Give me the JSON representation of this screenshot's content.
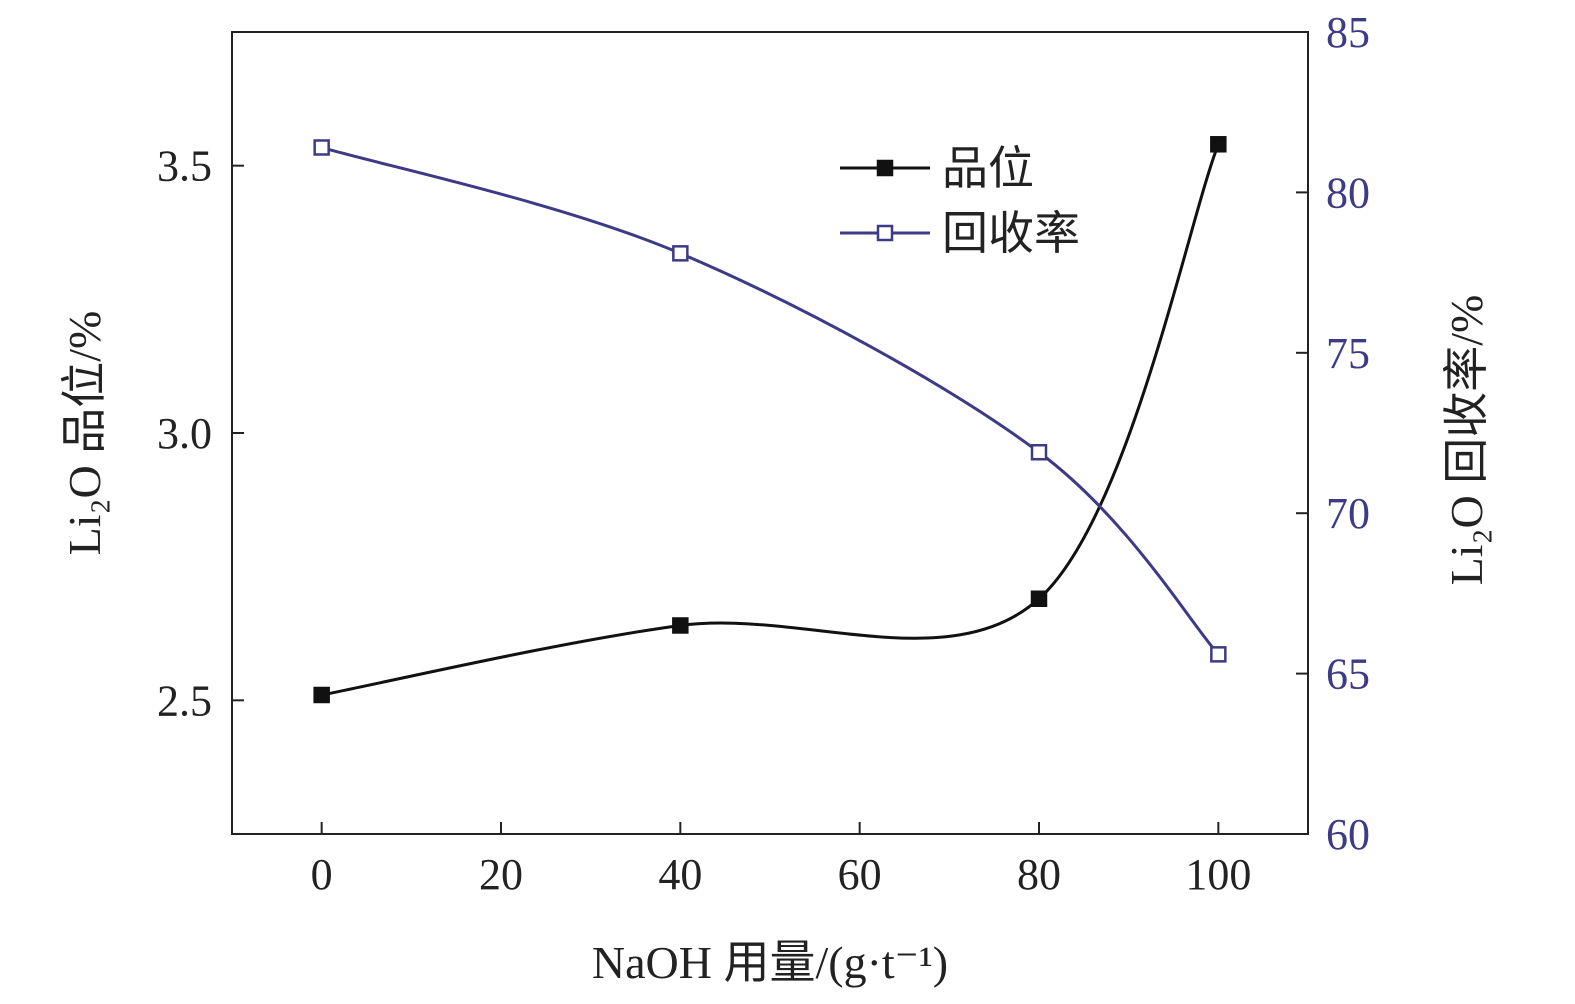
{
  "chart_data": {
    "type": "line",
    "x": [
      0,
      40,
      80,
      100
    ],
    "xlim": [
      -10,
      110
    ],
    "x_ticks": [
      0,
      20,
      40,
      60,
      80,
      100
    ],
    "xlabel": "NaOH 用量/(g·t⁻¹)",
    "y_left": {
      "label": "Li₂O 品位/%",
      "lim": [
        2.25,
        3.75
      ],
      "ticks": [
        2.5,
        3.0,
        3.5
      ],
      "tick_labels": [
        "2.5",
        "3.0",
        "3.5"
      ],
      "color": "#222222"
    },
    "y_right": {
      "label": "Li₂O 回收率/%",
      "lim": [
        60,
        85
      ],
      "ticks": [
        60,
        65,
        70,
        75,
        80,
        85
      ],
      "tick_labels": [
        "60",
        "65",
        "70",
        "75",
        "80",
        "85"
      ],
      "color": "#3d3a86"
    },
    "series": [
      {
        "name": "品位",
        "axis": "left",
        "values": [
          2.51,
          2.64,
          2.69,
          3.54
        ],
        "marker": "filled-square",
        "color": "#111111"
      },
      {
        "name": "回收率",
        "axis": "right",
        "values": [
          81.4,
          78.1,
          71.9,
          65.6
        ],
        "marker": "open-square",
        "color": "#3d3a86"
      }
    ],
    "legend_position": "top-right",
    "grid": false,
    "curve": "smooth"
  }
}
